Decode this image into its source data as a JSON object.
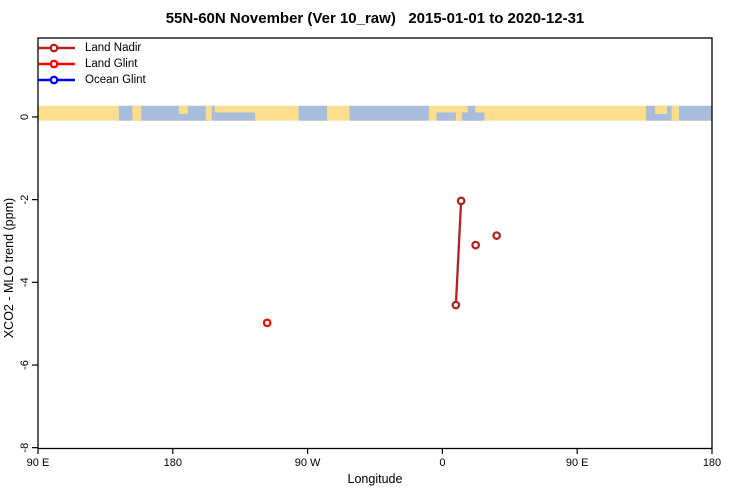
{
  "chart_data": {
    "type": "line",
    "title": "55N-60N November (Ver 10_raw)   2015-01-01 to 2020-12-31",
    "xlabel": "Longitude",
    "ylabel": "XCO2 - MLO trend (ppm)",
    "xlim": [
      -270,
      180
    ],
    "ylim": [
      -8.02,
      1.91
    ],
    "x_ticks": [
      {
        "v": -270,
        "label": "90 E"
      },
      {
        "v": -180,
        "label": "180"
      },
      {
        "v": -90,
        "label": "90 W"
      },
      {
        "v": 0,
        "label": "0"
      },
      {
        "v": 90,
        "label": "90 E"
      },
      {
        "v": 180,
        "label": "180"
      }
    ],
    "y_ticks": [
      {
        "v": 0,
        "label": "0"
      },
      {
        "v": -2,
        "label": "-2"
      },
      {
        "v": -4,
        "label": "-4"
      },
      {
        "v": -6,
        "label": "-6"
      },
      {
        "v": -8,
        "label": "-8"
      }
    ],
    "legend_position": "top-left",
    "grid": false,
    "series": [
      {
        "name": "Land Nadir",
        "color": "#B22222",
        "groups": [
          [
            {
              "lon": 9.0,
              "value": -4.55
            },
            {
              "lon": 12.5,
              "value": -2.03
            }
          ],
          [
            {
              "lon": 22.2,
              "value": -3.1
            }
          ],
          [
            {
              "lon": 36.2,
              "value": -2.87
            }
          ]
        ]
      },
      {
        "name": "Land Glint",
        "color": "#FF0000",
        "groups": [
          [
            {
              "lon": -117.0,
              "value": -4.98
            }
          ]
        ]
      },
      {
        "name": "Ocean Glint",
        "color": "#0000FF",
        "groups": []
      }
    ],
    "map_strip": {
      "description": "55N-60N latitude band world-map ribbon drawn near y=0",
      "v_top": 0.27,
      "v_bottom": -0.09,
      "land_color": "#FADD8D",
      "ocean_color": "#A8BDDC",
      "ocean_patches": [
        {
          "from": -216,
          "to": -152,
          "cover": "full"
        },
        {
          "from": -152,
          "to": -125,
          "cover": "bottom"
        },
        {
          "from": -96,
          "to": -77,
          "cover": "full"
        },
        {
          "from": -62,
          "to": -9,
          "cover": "full"
        },
        {
          "from": -4,
          "to": 6,
          "cover": "bottom"
        },
        {
          "from": 6,
          "to": 28,
          "cover": "bottom"
        },
        {
          "from": 17,
          "to": 22,
          "cover": "full"
        },
        {
          "from": 136,
          "to": 180,
          "cover": "full"
        }
      ],
      "land_islands": [
        {
          "from": -207,
          "to": -201,
          "cover": "full"
        },
        {
          "from": -176,
          "to": -170,
          "cover": "top"
        },
        {
          "from": -158,
          "to": -154,
          "cover": "full"
        },
        {
          "from": 9,
          "to": 13,
          "cover": "bottom"
        },
        {
          "from": 142,
          "to": 150,
          "cover": "top"
        },
        {
          "from": 153,
          "to": 158,
          "cover": "full"
        }
      ]
    }
  },
  "colors": {
    "axis": "#000000",
    "background": "#FFFFFF"
  }
}
